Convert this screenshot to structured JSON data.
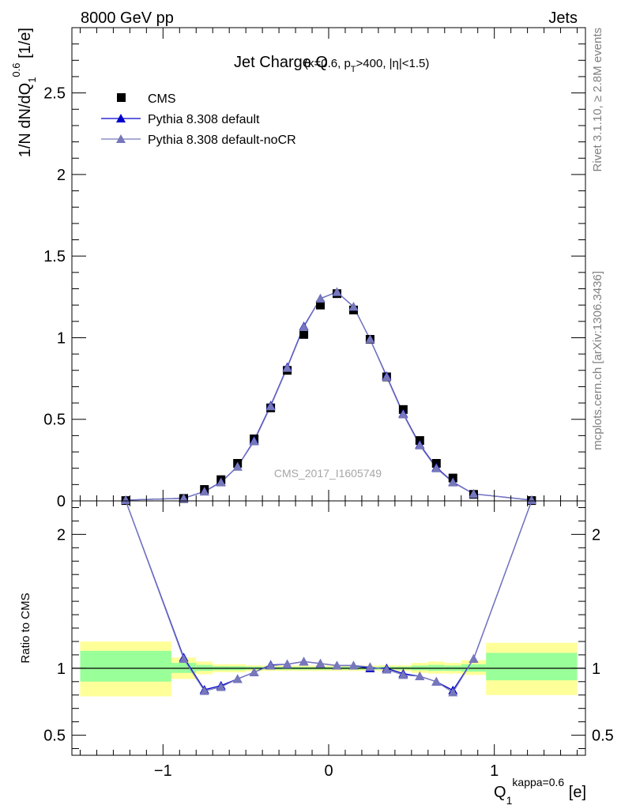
{
  "header": {
    "energy": "8000 GeV pp",
    "process": "Jets"
  },
  "side_labels": {
    "rivet": "Rivet 3.1.10, ≥ 2.8M events",
    "source": "mcplots.cern.ch [arXiv:1306.3436]"
  },
  "chart_data": [
    {
      "type": "scatter",
      "title": "Jet Charge Q",
      "subtitle_parts": {
        "a": "(κ=0.6, p",
        "a_sub": "T",
        "b": ">400, |η|<1.5)"
      },
      "watermark": "CMS_2017_I1605749",
      "ylabel": {
        "main": "1/N dN/dQ",
        "sub": "1",
        "sup": "0.6",
        "unit": " [1/e]"
      },
      "xlim": [
        -1.55,
        1.55
      ],
      "ylim": [
        0,
        2.9
      ],
      "yticks": [
        0,
        0.5,
        1,
        1.5,
        2,
        2.5
      ],
      "ytick_labels": [
        "0",
        "0.5",
        "1",
        "1.5",
        "2",
        "2.5"
      ],
      "legend": {
        "placement": "top-left",
        "entries": [
          "CMS",
          "Pythia 8.308 default",
          "Pythia 8.308 default-noCR"
        ]
      },
      "series": [
        {
          "name": "CMS",
          "marker": "square",
          "color": "#000000",
          "x": [
            -1.225,
            -0.875,
            -0.75,
            -0.65,
            -0.55,
            -0.45,
            -0.35,
            -0.25,
            -0.15,
            -0.05,
            0.05,
            0.15,
            0.25,
            0.35,
            0.45,
            0.55,
            0.65,
            0.75,
            0.875,
            1.225
          ],
          "y": [
            0.002,
            0.015,
            0.07,
            0.13,
            0.23,
            0.38,
            0.57,
            0.8,
            1.02,
            1.2,
            1.27,
            1.17,
            0.99,
            0.76,
            0.56,
            0.37,
            0.23,
            0.14,
            0.04,
            0.002
          ]
        },
        {
          "name": "Pythia 8.308 default",
          "marker": "triangle",
          "color": "#0000cc",
          "x": [
            -1.225,
            -0.875,
            -0.75,
            -0.65,
            -0.55,
            -0.45,
            -0.35,
            -0.25,
            -0.15,
            -0.05,
            0.05,
            0.15,
            0.25,
            0.35,
            0.45,
            0.55,
            0.65,
            0.75,
            0.875,
            1.225
          ],
          "y": [
            0.005,
            0.016,
            0.058,
            0.115,
            0.21,
            0.37,
            0.585,
            0.82,
            1.07,
            1.24,
            1.28,
            1.19,
            0.99,
            0.765,
            0.535,
            0.345,
            0.205,
            0.115,
            0.043,
            0.005
          ]
        },
        {
          "name": "Pythia 8.308 default-noCR",
          "marker": "triangle",
          "color": "#7777bb",
          "x": [
            -1.225,
            -0.875,
            -0.75,
            -0.65,
            -0.55,
            -0.45,
            -0.35,
            -0.25,
            -0.15,
            -0.05,
            0.05,
            0.15,
            0.25,
            0.35,
            0.45,
            0.55,
            0.65,
            0.75,
            0.875,
            1.225
          ],
          "y": [
            0.005,
            0.016,
            0.057,
            0.113,
            0.21,
            0.365,
            0.58,
            0.815,
            1.065,
            1.24,
            1.28,
            1.19,
            0.99,
            0.76,
            0.53,
            0.34,
            0.2,
            0.113,
            0.043,
            0.005
          ]
        }
      ]
    },
    {
      "type": "line",
      "ylabel": "Ratio to CMS",
      "xlabel": {
        "main": "Q",
        "sub": "1",
        "sup": "kappa=0.6",
        "unit": " [e]"
      },
      "xlim": [
        -1.55,
        1.55
      ],
      "ylim": [
        0.35,
        2.25
      ],
      "xticks": [
        -1,
        0,
        1
      ],
      "xtick_labels": [
        "−1",
        "0",
        "1"
      ],
      "yticks": [
        0.5,
        1,
        2
      ],
      "ytick_labels": [
        "0.5",
        "1",
        "2"
      ],
      "reference_line": 1,
      "uncertainty_bands": {
        "colors": {
          "inner": "#99ff99",
          "outer": "#ffff99"
        },
        "bins": [
          {
            "x0": -1.5,
            "x1": -0.95,
            "inner": [
              0.9,
              1.13
            ],
            "outer": [
              0.79,
              1.2
            ]
          },
          {
            "x0": -0.95,
            "x1": -0.8,
            "inner": [
              0.965,
              1.04
            ],
            "outer": [
              0.92,
              1.08
            ]
          },
          {
            "x0": -0.8,
            "x1": -0.7,
            "inner": [
              0.98,
              1.025
            ],
            "outer": [
              0.955,
              1.05
            ]
          },
          {
            "x0": -0.7,
            "x1": -0.6,
            "inner": [
              0.985,
              1.015
            ],
            "outer": [
              0.97,
              1.03
            ]
          },
          {
            "x0": -0.6,
            "x1": -0.5,
            "inner": [
              0.985,
              1.015
            ],
            "outer": [
              0.97,
              1.03
            ]
          },
          {
            "x0": -0.5,
            "x1": -0.4,
            "inner": [
              0.99,
              1.012
            ],
            "outer": [
              0.978,
              1.022
            ]
          },
          {
            "x0": -0.4,
            "x1": -0.3,
            "inner": [
              0.99,
              1.01
            ],
            "outer": [
              0.98,
              1.02
            ]
          },
          {
            "x0": -0.3,
            "x1": -0.2,
            "inner": [
              0.99,
              1.01
            ],
            "outer": [
              0.98,
              1.02
            ]
          },
          {
            "x0": -0.2,
            "x1": -0.1,
            "inner": [
              0.99,
              1.01
            ],
            "outer": [
              0.98,
              1.02
            ]
          },
          {
            "x0": -0.1,
            "x1": 0.0,
            "inner": [
              0.99,
              1.01
            ],
            "outer": [
              0.98,
              1.02
            ]
          },
          {
            "x0": 0.0,
            "x1": 0.1,
            "inner": [
              0.99,
              1.01
            ],
            "outer": [
              0.98,
              1.02
            ]
          },
          {
            "x0": 0.1,
            "x1": 0.2,
            "inner": [
              0.99,
              1.01
            ],
            "outer": [
              0.98,
              1.02
            ]
          },
          {
            "x0": 0.2,
            "x1": 0.3,
            "inner": [
              0.99,
              1.01
            ],
            "outer": [
              0.98,
              1.02
            ]
          },
          {
            "x0": 0.3,
            "x1": 0.4,
            "inner": [
              0.99,
              1.012
            ],
            "outer": [
              0.978,
              1.022
            ]
          },
          {
            "x0": 0.4,
            "x1": 0.5,
            "inner": [
              0.99,
              1.012
            ],
            "outer": [
              0.978,
              1.022
            ]
          },
          {
            "x0": 0.5,
            "x1": 0.6,
            "inner": [
              0.985,
              1.02
            ],
            "outer": [
              0.965,
              1.04
            ]
          },
          {
            "x0": 0.6,
            "x1": 0.7,
            "inner": [
              0.98,
              1.025
            ],
            "outer": [
              0.96,
              1.05
            ]
          },
          {
            "x0": 0.7,
            "x1": 0.8,
            "inner": [
              0.98,
              1.02
            ],
            "outer": [
              0.96,
              1.04
            ]
          },
          {
            "x0": 0.8,
            "x1": 0.95,
            "inner": [
              0.975,
              1.03
            ],
            "outer": [
              0.95,
              1.06
            ]
          },
          {
            "x0": 0.95,
            "x1": 1.5,
            "inner": [
              0.91,
              1.115
            ],
            "outer": [
              0.8,
              1.19
            ]
          }
        ]
      },
      "series": [
        {
          "name": "Pythia 8.308 default",
          "color": "#0000cc",
          "x": [
            -1.225,
            -0.875,
            -0.75,
            -0.65,
            -0.55,
            -0.45,
            -0.35,
            -0.25,
            -0.15,
            -0.05,
            0.05,
            0.15,
            0.25,
            0.35,
            0.45,
            0.55,
            0.65,
            0.75,
            0.875,
            1.225
          ],
          "y": [
            2.5,
            1.08,
            0.84,
            0.87,
            0.92,
            0.97,
            1.025,
            1.03,
            1.05,
            1.035,
            1.02,
            1.02,
            1.0,
            1.0,
            0.96,
            0.94,
            0.9,
            0.835,
            1.07,
            2.5
          ]
        },
        {
          "name": "Pythia 8.308 default-noCR",
          "color": "#7777bb",
          "x": [
            -1.225,
            -0.875,
            -0.75,
            -0.65,
            -0.55,
            -0.45,
            -0.35,
            -0.25,
            -0.15,
            -0.05,
            0.05,
            0.15,
            0.25,
            0.35,
            0.45,
            0.55,
            0.65,
            0.75,
            0.875,
            1.225
          ],
          "y": [
            2.5,
            1.07,
            0.83,
            0.86,
            0.92,
            0.97,
            1.02,
            1.03,
            1.05,
            1.035,
            1.02,
            1.02,
            1.01,
            0.99,
            0.95,
            0.94,
            0.9,
            0.82,
            1.07,
            2.5
          ]
        }
      ]
    }
  ]
}
